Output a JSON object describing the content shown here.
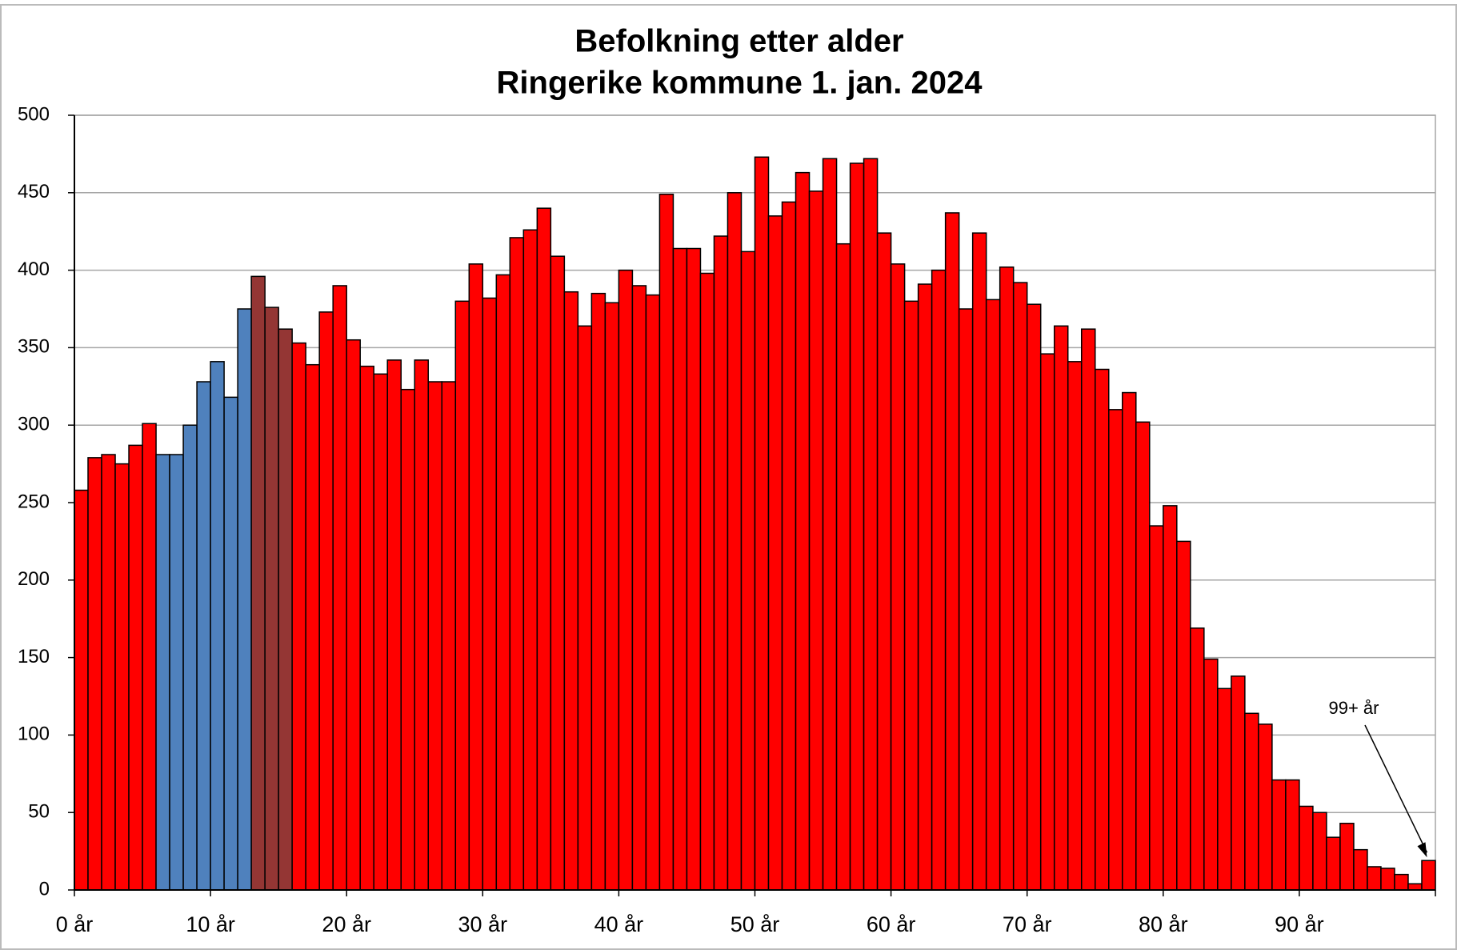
{
  "chart_data": {
    "type": "bar",
    "title": "Befolkning etter alder",
    "subtitle": "Ringerike kommune 1. jan. 2024",
    "categories": [
      "0 år",
      null,
      null,
      null,
      null,
      null,
      null,
      null,
      null,
      null,
      "10 år",
      null,
      null,
      null,
      null,
      null,
      null,
      null,
      null,
      null,
      "20 år",
      null,
      null,
      null,
      null,
      null,
      null,
      null,
      null,
      null,
      "30 år",
      null,
      null,
      null,
      null,
      null,
      null,
      null,
      null,
      null,
      "40 år",
      null,
      null,
      null,
      null,
      null,
      null,
      null,
      null,
      null,
      "50 år",
      null,
      null,
      null,
      null,
      null,
      null,
      null,
      null,
      null,
      "60 år",
      null,
      null,
      null,
      null,
      null,
      null,
      null,
      null,
      null,
      "70 år",
      null,
      null,
      null,
      null,
      null,
      null,
      null,
      null,
      null,
      "80 år",
      null,
      null,
      null,
      null,
      null,
      null,
      null,
      null,
      null,
      "90 år",
      null,
      null,
      null,
      null,
      null,
      null,
      null,
      null,
      null
    ],
    "values": [
      258,
      279,
      281,
      275,
      287,
      301,
      281,
      281,
      300,
      328,
      341,
      318,
      375,
      396,
      376,
      362,
      353,
      339,
      373,
      390,
      355,
      338,
      333,
      342,
      323,
      342,
      328,
      328,
      380,
      404,
      382,
      397,
      421,
      426,
      440,
      409,
      386,
      364,
      385,
      379,
      400,
      390,
      384,
      449,
      414,
      414,
      398,
      422,
      450,
      412,
      473,
      435,
      444,
      463,
      451,
      472,
      417,
      469,
      472,
      424,
      404,
      380,
      391,
      400,
      437,
      375,
      424,
      381,
      402,
      392,
      378,
      346,
      364,
      341,
      362,
      336,
      310,
      321,
      302,
      235,
      248,
      225,
      169,
      149,
      130,
      138,
      114,
      107,
      71,
      71,
      54,
      50,
      34,
      43,
      26,
      15,
      14,
      10,
      4,
      19
    ],
    "colors": [
      "#ff0000",
      "#ff0000",
      "#ff0000",
      "#ff0000",
      "#ff0000",
      "#ff0000",
      "#4f81bd",
      "#4f81bd",
      "#4f81bd",
      "#4f81bd",
      "#4f81bd",
      "#4f81bd",
      "#4f81bd",
      "#943634",
      "#943634",
      "#943634",
      "#ff0000",
      "#ff0000",
      "#ff0000",
      "#ff0000",
      "#ff0000",
      "#ff0000",
      "#ff0000",
      "#ff0000",
      "#ff0000",
      "#ff0000",
      "#ff0000",
      "#ff0000",
      "#ff0000",
      "#ff0000",
      "#ff0000",
      "#ff0000",
      "#ff0000",
      "#ff0000",
      "#ff0000",
      "#ff0000",
      "#ff0000",
      "#ff0000",
      "#ff0000",
      "#ff0000",
      "#ff0000",
      "#ff0000",
      "#ff0000",
      "#ff0000",
      "#ff0000",
      "#ff0000",
      "#ff0000",
      "#ff0000",
      "#ff0000",
      "#ff0000",
      "#ff0000",
      "#ff0000",
      "#ff0000",
      "#ff0000",
      "#ff0000",
      "#ff0000",
      "#ff0000",
      "#ff0000",
      "#ff0000",
      "#ff0000",
      "#ff0000",
      "#ff0000",
      "#ff0000",
      "#ff0000",
      "#ff0000",
      "#ff0000",
      "#ff0000",
      "#ff0000",
      "#ff0000",
      "#ff0000",
      "#ff0000",
      "#ff0000",
      "#ff0000",
      "#ff0000",
      "#ff0000",
      "#ff0000",
      "#ff0000",
      "#ff0000",
      "#ff0000",
      "#ff0000",
      "#ff0000",
      "#ff0000",
      "#ff0000",
      "#ff0000",
      "#ff0000",
      "#ff0000",
      "#ff0000",
      "#ff0000",
      "#ff0000",
      "#ff0000",
      "#ff0000",
      "#ff0000",
      "#ff0000",
      "#ff0000",
      "#ff0000",
      "#ff0000",
      "#ff0000",
      "#ff0000",
      "#ff0000",
      "#ff0000"
    ],
    "annotation": "99+ år",
    "ylim": [
      0,
      500
    ],
    "yticks": [
      0,
      50,
      100,
      150,
      200,
      250,
      300,
      350,
      400,
      450,
      500
    ],
    "grid": true
  }
}
